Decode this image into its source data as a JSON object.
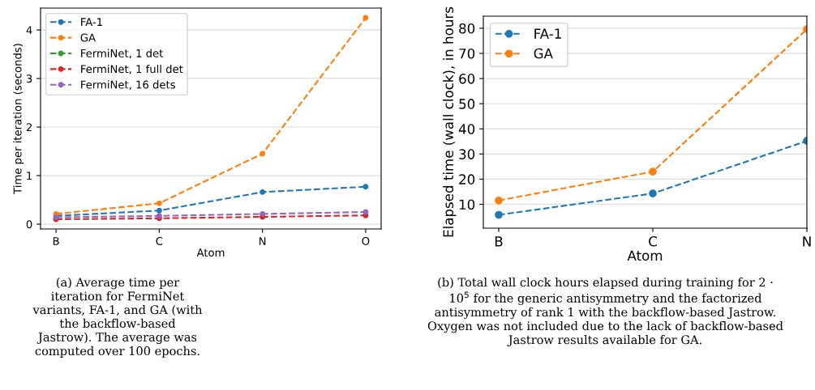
{
  "chart_data": [
    {
      "type": "line",
      "categories": [
        "B",
        "C",
        "N",
        "O"
      ],
      "xlabel": "Atom",
      "ylabel": "Time per iteration (seconds)",
      "series": [
        {
          "name": "FA-1",
          "color": "#1f77b4",
          "values": [
            0.17,
            0.28,
            0.66,
            0.77
          ]
        },
        {
          "name": "GA",
          "color": "#ff7f0e",
          "values": [
            0.21,
            0.43,
            1.45,
            4.25
          ]
        },
        {
          "name": "FermiNet, 1 det",
          "color": "#2ca02c",
          "values": [
            null,
            null,
            null,
            null
          ]
        },
        {
          "name": "FermiNet, 1 full det",
          "color": "#d62728",
          "values": [
            0.1,
            0.12,
            0.15,
            0.18
          ]
        },
        {
          "name": "FermiNet, 16 dets",
          "color": "#9467bd",
          "values": [
            0.14,
            0.17,
            0.21,
            0.25
          ]
        }
      ],
      "ylim": [
        -0.1,
        4.45
      ],
      "yticks": [
        0,
        1,
        2,
        3,
        4
      ],
      "grid": "y",
      "legend": "top left",
      "marker": "circle",
      "line_style": "dashed",
      "annotations": [
        "(a) Average time per iteration for FermiNet variants, FA-1, and GA (with the backflow-based Jastrow). The average was computed over 100 epochs."
      ]
    },
    {
      "type": "line",
      "categories": [
        "B",
        "C",
        "N"
      ],
      "xlabel": "Atom",
      "ylabel": "Elapsed time (wall clock), in hours",
      "series": [
        {
          "name": "FA-1",
          "color": "#1f77b4",
          "values": [
            5.8,
            14.3,
            35.2
          ]
        },
        {
          "name": "GA",
          "color": "#ff7f0e",
          "values": [
            11.5,
            23,
            79.6
          ]
        }
      ],
      "ylim": [
        0.5,
        84.8
      ],
      "yticks": [
        10,
        20,
        30,
        40,
        50,
        60,
        70,
        80
      ],
      "grid": "y",
      "legend": "top left",
      "marker": "circle",
      "line_style": "dashed",
      "annotations": [
        "(b) Total wall clock hours elapsed during training for 2 · 10$^{5}$ for the generic antisymmetry and the factorized antisymmetry of rank 1 with the backflow-based Jastrow. Oxygen was not included due to the lack of backflow-based Jastrow results available for GA."
      ]
    }
  ]
}
